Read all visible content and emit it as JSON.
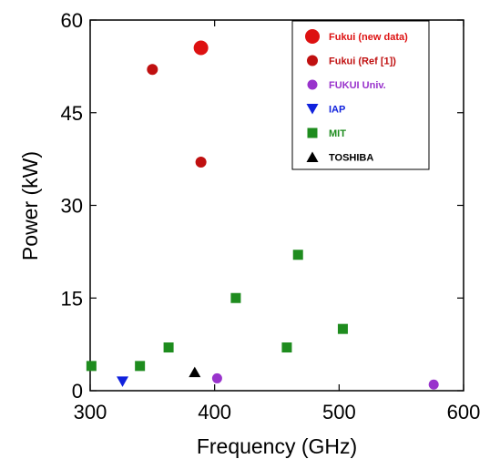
{
  "chart_data": {
    "type": "scatter",
    "xlabel": "Frequency (GHz)",
    "ylabel": "Power (kW)",
    "xlim": [
      300,
      600
    ],
    "ylim": [
      0,
      60
    ],
    "xticks": [
      300,
      400,
      500,
      600
    ],
    "yticks": [
      0,
      15,
      30,
      45,
      60
    ],
    "x_tick_labels": [
      "300",
      "400",
      "500",
      "600"
    ],
    "y_tick_labels": [
      "0",
      "15",
      "30",
      "45",
      "60"
    ],
    "grid": false,
    "legend_position": "top-right",
    "series": [
      {
        "name": "Fukui (new data)",
        "marker": "circle-large",
        "color": "#dd1111",
        "points": [
          {
            "x": 389,
            "y": 55.5
          }
        ]
      },
      {
        "name": "Fukui (Ref [1])",
        "marker": "circle",
        "color": "#c01010",
        "points": [
          {
            "x": 350,
            "y": 52
          },
          {
            "x": 389,
            "y": 37
          }
        ]
      },
      {
        "name": "FUKUI Univ.",
        "marker": "circle-small",
        "color": "#9933cc",
        "points": [
          {
            "x": 402,
            "y": 2
          },
          {
            "x": 576,
            "y": 1
          }
        ]
      },
      {
        "name": "IAP",
        "marker": "triangle-down",
        "color": "#1122dd",
        "points": [
          {
            "x": 326,
            "y": 1.5
          }
        ]
      },
      {
        "name": "MIT",
        "marker": "square",
        "color": "#1e8c1e",
        "points": [
          {
            "x": 301,
            "y": 4
          },
          {
            "x": 340,
            "y": 4
          },
          {
            "x": 363,
            "y": 7
          },
          {
            "x": 417,
            "y": 15
          },
          {
            "x": 458,
            "y": 7
          },
          {
            "x": 467,
            "y": 22
          },
          {
            "x": 503,
            "y": 10
          }
        ]
      },
      {
        "name": "TOSHIBA",
        "marker": "triangle-up",
        "color": "#000000",
        "points": [
          {
            "x": 384,
            "y": 3
          }
        ]
      }
    ]
  }
}
